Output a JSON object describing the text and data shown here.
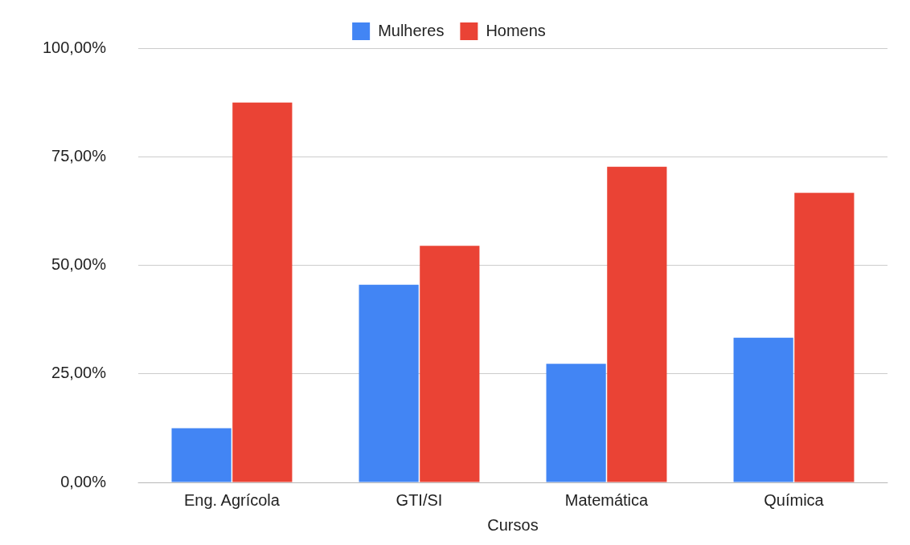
{
  "chart_data": {
    "type": "bar",
    "xlabel": "Cursos",
    "categories": [
      "Eng. Agrícola",
      "GTI/SI",
      "Matemática",
      "Química"
    ],
    "series": [
      {
        "name": "Mulheres",
        "color": "#4285f4",
        "values": [
          12.5,
          45.5,
          27.3,
          33.3
        ]
      },
      {
        "name": "Homens",
        "color": "#ea4335",
        "values": [
          87.5,
          54.5,
          72.7,
          66.7
        ]
      }
    ],
    "ylim": [
      0,
      100
    ],
    "yticks": [
      {
        "value": 0,
        "label": "0,00%"
      },
      {
        "value": 25,
        "label": "25,00%"
      },
      {
        "value": 50,
        "label": "50,00%"
      },
      {
        "value": 75,
        "label": "75,00%"
      },
      {
        "value": 100,
        "label": "100,00%"
      }
    ],
    "grid": "y",
    "legend": "top"
  }
}
